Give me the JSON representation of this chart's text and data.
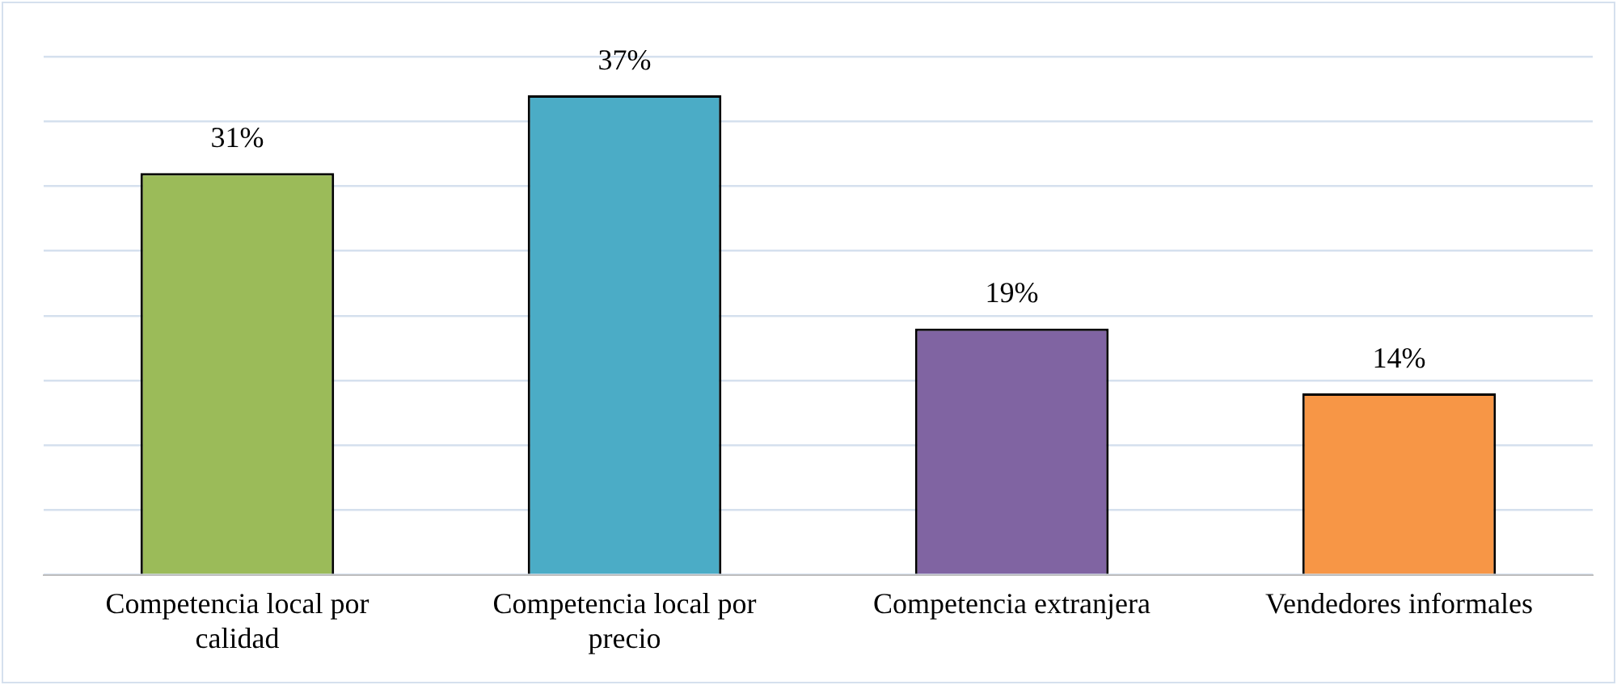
{
  "chart_data": {
    "type": "bar",
    "categories": [
      "Competencia local por calidad",
      "Competencia local por precio",
      "Competencia extranjera",
      "Vendedores informales"
    ],
    "values": [
      31,
      37,
      19,
      14
    ],
    "colors": [
      "#9bbb59",
      "#4bacc6",
      "#8064a2",
      "#f79646"
    ],
    "value_labels": [
      "31%",
      "37%",
      "19%",
      "14%"
    ],
    "grid": "y",
    "tick_labels": "x"
  }
}
